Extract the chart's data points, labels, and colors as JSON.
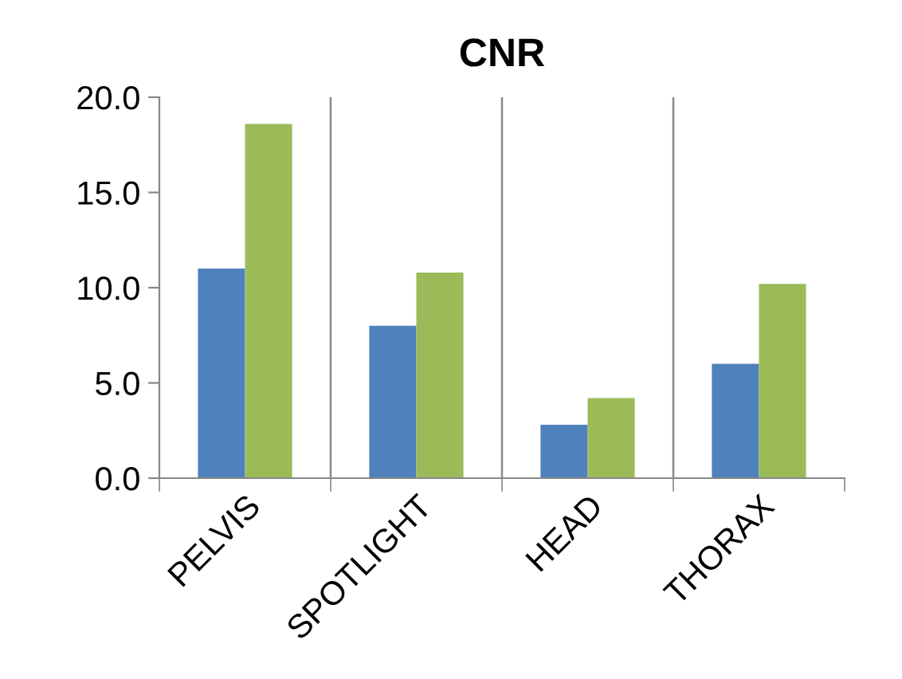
{
  "chart_data": {
    "type": "bar",
    "title": "CNR",
    "categories": [
      "PELVIS",
      "SPOTLIGHT",
      "HEAD",
      "THORAX"
    ],
    "series": [
      {
        "color": "#4f81bd",
        "values": [
          11.0,
          8.0,
          2.8,
          6.0
        ]
      },
      {
        "color": "#9bbb59",
        "values": [
          18.6,
          10.8,
          4.2,
          10.2
        ]
      }
    ],
    "ylim": [
      0,
      20
    ],
    "yticks": [
      {
        "value": 0,
        "label": "0.0"
      },
      {
        "value": 5,
        "label": "5.0"
      },
      {
        "value": 10,
        "label": "10.0"
      },
      {
        "value": 15,
        "label": "15.0"
      },
      {
        "value": 20,
        "label": "20.0"
      }
    ],
    "grid": "x"
  }
}
